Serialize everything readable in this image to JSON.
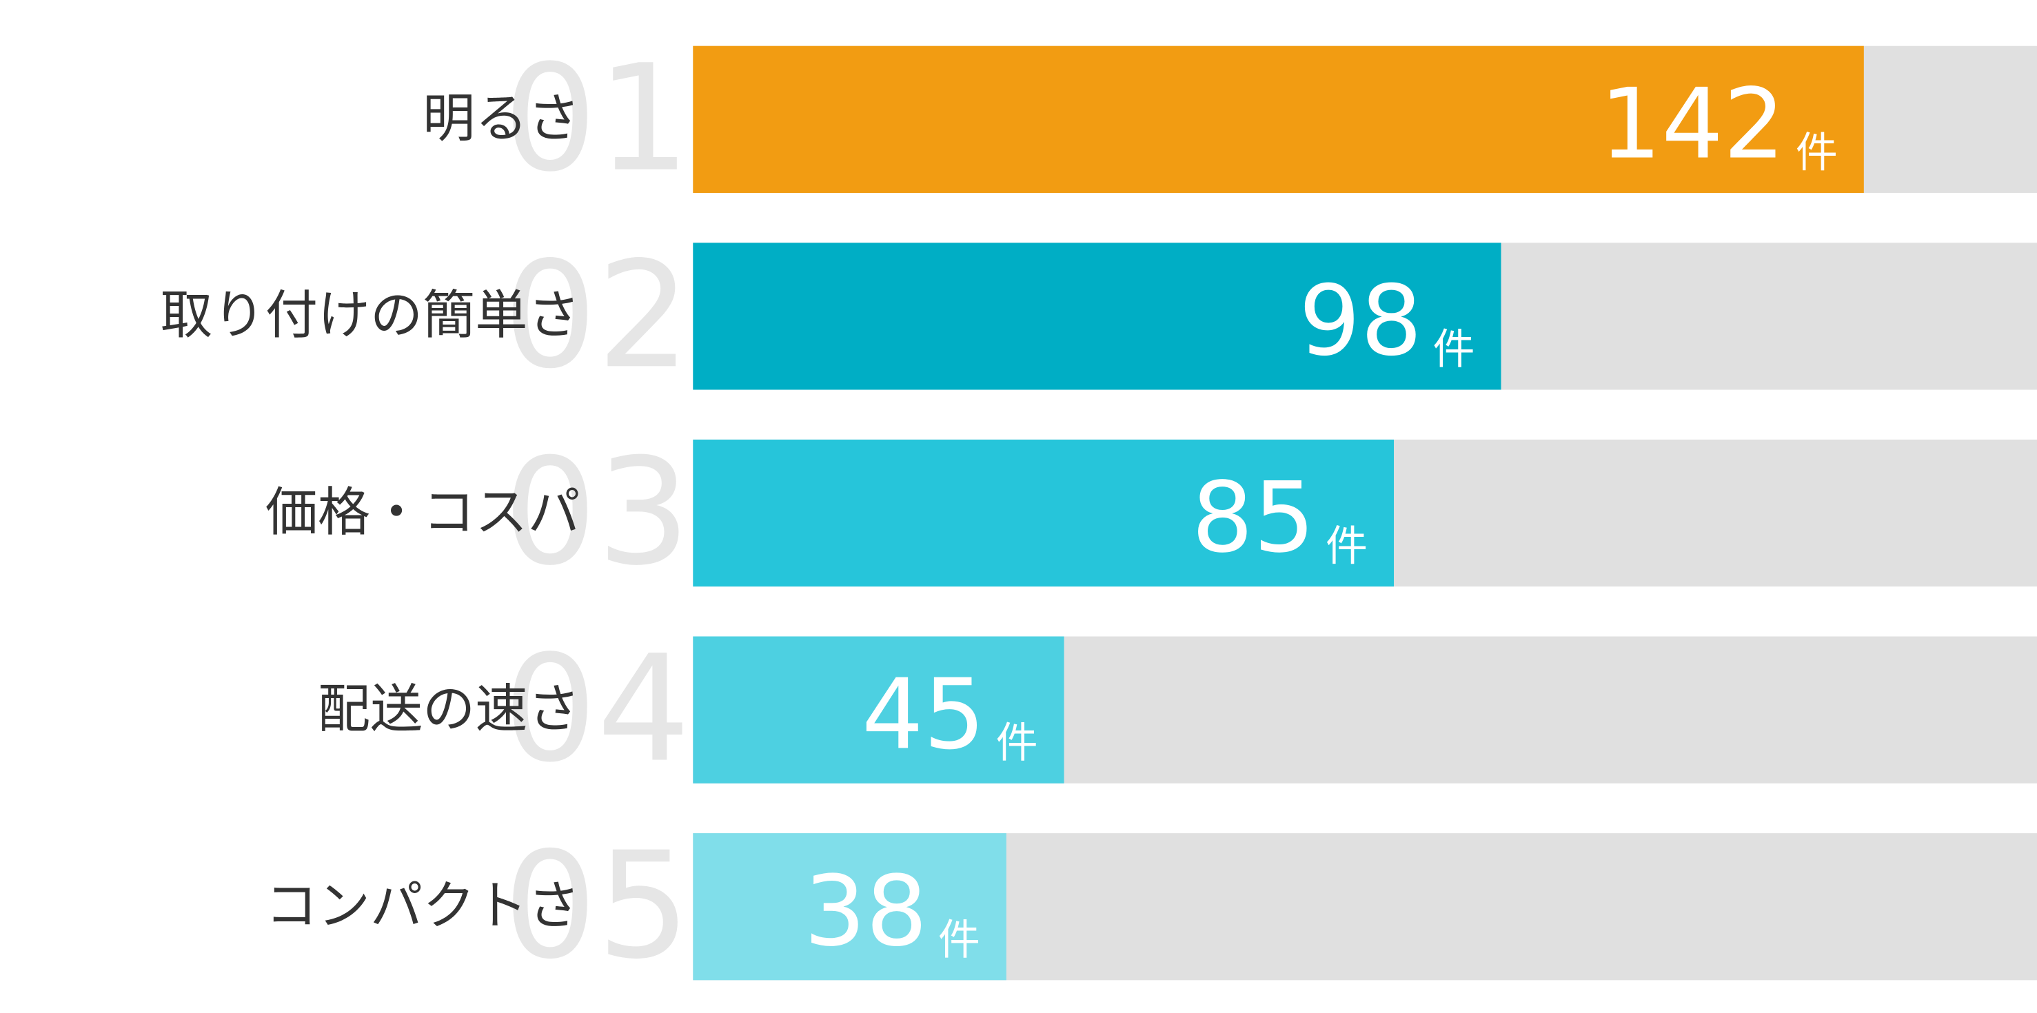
{
  "chart_data": {
    "type": "bar",
    "orientation": "horizontal",
    "categories": [
      "明るさ",
      "取り付けの簡単さ",
      "価格・コスパ",
      "配送の速さ",
      "コンパクトさ"
    ],
    "ranks": [
      "01",
      "02",
      "03",
      "04",
      "05"
    ],
    "values": [
      142,
      98,
      85,
      45,
      38
    ],
    "unit": "件",
    "colors": [
      "#f29c12",
      "#00aec5",
      "#26c5da",
      "#4dd0e1",
      "#80deea"
    ],
    "track_color": "#e0e0e0",
    "xlim": [
      0,
      163
    ]
  }
}
